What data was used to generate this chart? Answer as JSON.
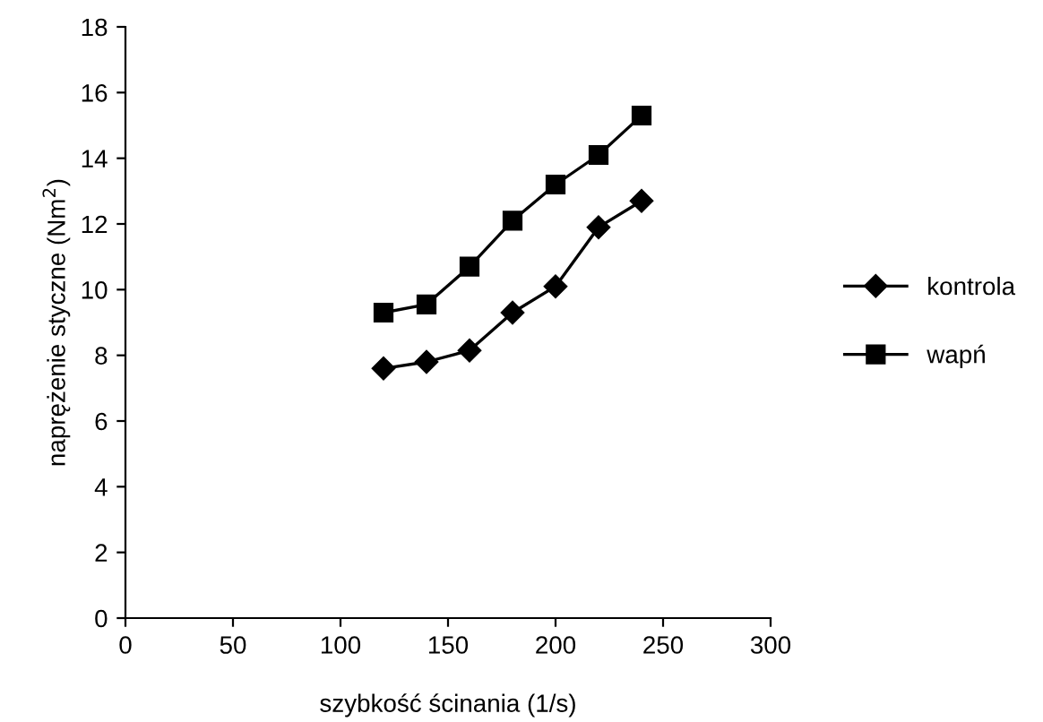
{
  "chart_data": {
    "type": "line",
    "xlabel": "szybkość ścinania (1/s)",
    "ylabel": "naprężenie styczne (Nm$^{2}$)",
    "xlim": [
      0,
      300
    ],
    "xticks": [
      0,
      50,
      100,
      150,
      200,
      250,
      300
    ],
    "ylim": [
      0,
      18
    ],
    "yticks": [
      0,
      2,
      4,
      6,
      8,
      10,
      12,
      14,
      16,
      18
    ],
    "grid": false,
    "legend": "right",
    "series": [
      {
        "name": "kontrola",
        "color": "#000000",
        "marker": "diamond",
        "x": [
          120,
          140,
          160,
          180,
          200,
          220,
          240
        ],
        "values": [
          7.6,
          7.8,
          8.15,
          9.3,
          10.1,
          11.9,
          12.7
        ]
      },
      {
        "name": "wapń",
        "color": "#000000",
        "marker": "square",
        "x": [
          120,
          140,
          160,
          180,
          200,
          220,
          240
        ],
        "values": [
          9.3,
          9.55,
          10.7,
          12.1,
          13.2,
          14.1,
          15.3
        ]
      }
    ]
  }
}
